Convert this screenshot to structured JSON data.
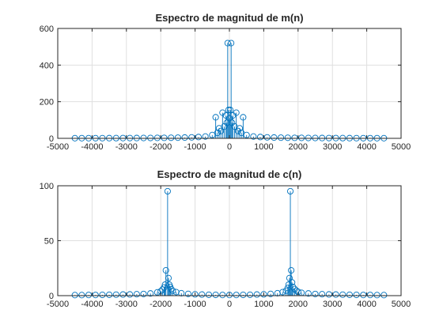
{
  "figure": {
    "background": "#ffffff",
    "series_color": "#0072bd"
  },
  "chart_data": [
    {
      "type": "stem",
      "title": "Espectro de magnitud de m(n)",
      "xlabel": "",
      "ylabel": "",
      "xlim": [
        -5000,
        5000
      ],
      "ylim": [
        0,
        600
      ],
      "xticks": [
        -5000,
        -4000,
        -3000,
        -2000,
        -1000,
        0,
        1000,
        2000,
        3000,
        4000,
        5000
      ],
      "xtick_labels": [
        "-5000",
        "-4000",
        "-3000",
        "-2000",
        "-1000",
        "0",
        "1000",
        "2000",
        "3000",
        "4000",
        "5000"
      ],
      "yticks": [
        0,
        200,
        400,
        600
      ],
      "ytick_labels": [
        "0",
        "200",
        "400",
        "600"
      ],
      "grid": true,
      "marker": "circle",
      "series": [
        {
          "values": [
            [
              -4500,
              0.8
            ],
            [
              -4300,
              0.9
            ],
            [
              -4100,
              0.9
            ],
            [
              -3900,
              1.0
            ],
            [
              -3700,
              1.1
            ],
            [
              -3500,
              1.2
            ],
            [
              -3300,
              1.3
            ],
            [
              -3100,
              1.4
            ],
            [
              -2900,
              1.5
            ],
            [
              -2700,
              1.7
            ],
            [
              -2500,
              1.9
            ],
            [
              -2300,
              2.1
            ],
            [
              -2100,
              2.4
            ],
            [
              -1900,
              2.7
            ],
            [
              -1700,
              3.1
            ],
            [
              -1500,
              3.6
            ],
            [
              -1300,
              4.4
            ],
            [
              -1100,
              5.4
            ],
            [
              -900,
              7.1
            ],
            [
              -700,
              10
            ],
            [
              -500,
              18
            ],
            [
              -400,
              115
            ],
            [
              -350,
              30
            ],
            [
              -300,
              55
            ],
            [
              -250,
              40
            ],
            [
              -200,
              140
            ],
            [
              -150,
              65
            ],
            [
              -100,
              125
            ],
            [
              -75,
              85
            ],
            [
              -50,
              520
            ],
            [
              -25,
              155
            ],
            [
              0,
              110
            ],
            [
              25,
              155
            ],
            [
              50,
              520
            ],
            [
              75,
              85
            ],
            [
              100,
              125
            ],
            [
              150,
              65
            ],
            [
              200,
              140
            ],
            [
              250,
              40
            ],
            [
              300,
              55
            ],
            [
              350,
              30
            ],
            [
              400,
              115
            ],
            [
              500,
              18
            ],
            [
              700,
              10
            ],
            [
              900,
              7.1
            ],
            [
              1100,
              5.4
            ],
            [
              1300,
              4.4
            ],
            [
              1500,
              3.6
            ],
            [
              1700,
              3.1
            ],
            [
              1900,
              2.7
            ],
            [
              2100,
              2.4
            ],
            [
              2300,
              2.1
            ],
            [
              2500,
              1.9
            ],
            [
              2700,
              1.7
            ],
            [
              2900,
              1.5
            ],
            [
              3100,
              1.4
            ],
            [
              3300,
              1.3
            ],
            [
              3500,
              1.2
            ],
            [
              3700,
              1.1
            ],
            [
              3900,
              1.0
            ],
            [
              4100,
              0.9
            ],
            [
              4300,
              0.9
            ],
            [
              4500,
              0.8
            ]
          ]
        }
      ]
    },
    {
      "type": "stem",
      "title": "Espectro de magnitud de c(n)",
      "xlabel": "",
      "ylabel": "",
      "xlim": [
        -5000,
        5000
      ],
      "ylim": [
        0,
        100
      ],
      "xticks": [
        -5000,
        -4000,
        -3000,
        -2000,
        -1000,
        0,
        1000,
        2000,
        3000,
        4000,
        5000
      ],
      "xtick_labels": [
        "-5000",
        "-4000",
        "-3000",
        "-2000",
        "-1000",
        "0",
        "1000",
        "2000",
        "3000",
        "4000",
        "5000"
      ],
      "yticks": [
        0,
        50,
        100
      ],
      "ytick_labels": [
        "0",
        "50",
        "100"
      ],
      "grid": true,
      "marker": "circle",
      "series": [
        {
          "values": [
            [
              -4500,
              0.5
            ],
            [
              -4300,
              0.5
            ],
            [
              -4100,
              0.6
            ],
            [
              -3900,
              0.6
            ],
            [
              -3700,
              0.7
            ],
            [
              -3500,
              0.8
            ],
            [
              -3300,
              0.9
            ],
            [
              -3100,
              1.0
            ],
            [
              -2900,
              1.1
            ],
            [
              -2700,
              1.3
            ],
            [
              -2500,
              1.5
            ],
            [
              -2300,
              2.0
            ],
            [
              -2100,
              3.0
            ],
            [
              -2000,
              4.0
            ],
            [
              -1950,
              5.5
            ],
            [
              -1900,
              7.5
            ],
            [
              -1875,
              10
            ],
            [
              -1850,
              23
            ],
            [
              -1800,
              95
            ],
            [
              -1775,
              16
            ],
            [
              -1750,
              10
            ],
            [
              -1725,
              8
            ],
            [
              -1700,
              6
            ],
            [
              -1650,
              4.5
            ],
            [
              -1550,
              3.2
            ],
            [
              -1400,
              2.2
            ],
            [
              -1200,
              1.6
            ],
            [
              -1000,
              1.2
            ],
            [
              -800,
              1.0
            ],
            [
              -600,
              0.8
            ],
            [
              -400,
              0.7
            ],
            [
              -200,
              0.6
            ],
            [
              0,
              0.6
            ],
            [
              200,
              0.6
            ],
            [
              400,
              0.7
            ],
            [
              600,
              0.8
            ],
            [
              800,
              1.0
            ],
            [
              1000,
              1.2
            ],
            [
              1200,
              1.6
            ],
            [
              1400,
              2.2
            ],
            [
              1550,
              3.2
            ],
            [
              1650,
              4.5
            ],
            [
              1700,
              7
            ],
            [
              1725,
              10
            ],
            [
              1750,
              16
            ],
            [
              1775,
              95
            ],
            [
              1800,
              23
            ],
            [
              1825,
              12
            ],
            [
              1850,
              8
            ],
            [
              1900,
              6
            ],
            [
              1950,
              4.5
            ],
            [
              2000,
              3.5
            ],
            [
              2100,
              2.6
            ],
            [
              2300,
              2.0
            ],
            [
              2500,
              1.5
            ],
            [
              2700,
              1.3
            ],
            [
              2900,
              1.1
            ],
            [
              3100,
              1.0
            ],
            [
              3300,
              0.9
            ],
            [
              3500,
              0.8
            ],
            [
              3700,
              0.7
            ],
            [
              3900,
              0.6
            ],
            [
              4100,
              0.6
            ],
            [
              4300,
              0.5
            ],
            [
              4500,
              0.5
            ]
          ]
        }
      ]
    }
  ]
}
